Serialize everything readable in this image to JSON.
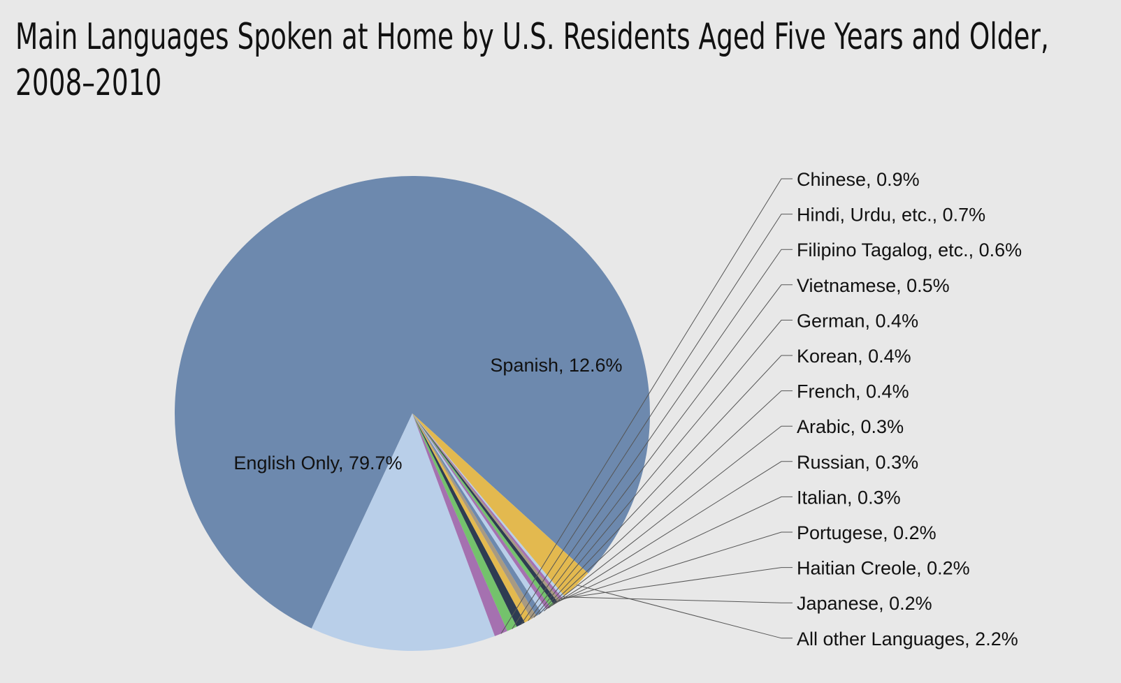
{
  "chart_data": {
    "type": "pie",
    "title_lines": [
      "Main Languages Spoken at Home by U.S. Residents Aged Five Years and Older,",
      "2008–2010"
    ],
    "slices": [
      {
        "label": "English Only, 79.7%",
        "value": 79.7,
        "color": "#6d89ae"
      },
      {
        "label": "Spanish, 12.6%",
        "value": 12.6,
        "color": "#b9cfe9"
      },
      {
        "label": "Chinese, 0.9%",
        "value": 0.9,
        "color": "#a571b0"
      },
      {
        "label": "Hindi, Urdu, etc., 0.7%",
        "value": 0.7,
        "color": "#74c26c"
      },
      {
        "label": "Filipino Tagalog, etc., 0.6%",
        "value": 0.6,
        "color": "#2e3c52"
      },
      {
        "label": "Vietnamese, 0.5%",
        "value": 0.5,
        "color": "#e3b94f"
      },
      {
        "label": "German, 0.4%",
        "value": 0.4,
        "color": "#a89a82"
      },
      {
        "label": "Korean, 0.4%",
        "value": 0.4,
        "color": "#6d89ae"
      },
      {
        "label": "French, 0.4%",
        "value": 0.4,
        "color": "#b9cfe9"
      },
      {
        "label": "Arabic, 0.3%",
        "value": 0.3,
        "color": "#a571b0"
      },
      {
        "label": "Russian, 0.3%",
        "value": 0.3,
        "color": "#74c26c"
      },
      {
        "label": "Italian, 0.3%",
        "value": 0.3,
        "color": "#2e3c52"
      },
      {
        "label": "Portugese, 0.2%",
        "value": 0.2,
        "color": "#a89a82"
      },
      {
        "label": "Haitian Creole, 0.2%",
        "value": 0.2,
        "color": "#a571b0"
      },
      {
        "label": "Japanese, 0.2%",
        "value": 0.2,
        "color": "#b9cfe9"
      },
      {
        "label": "All other Languages, 2.2%",
        "value": 2.2,
        "color": "#e3b94f"
      }
    ],
    "legend_placement": "right, with leader lines",
    "label_color": "#111111",
    "leader_line_color": "#555555",
    "background": "#e8e8e8"
  }
}
